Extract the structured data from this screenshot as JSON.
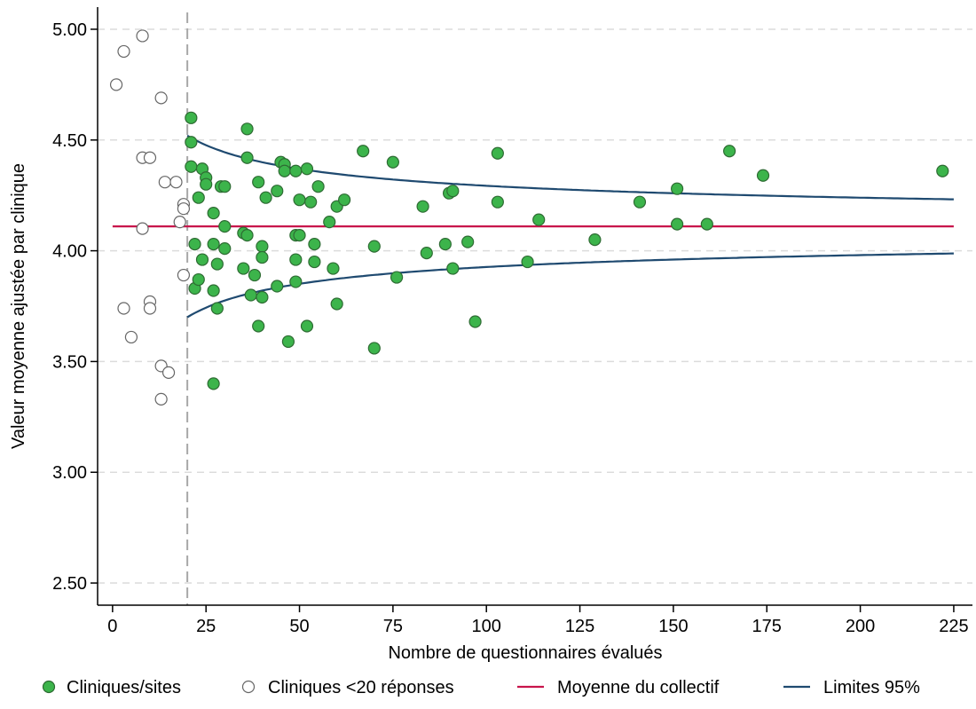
{
  "chart_data": {
    "type": "scatter",
    "xlabel": "Nombre de questionnaires évalués",
    "ylabel": "Valeur moyenne ajustée par clinique",
    "xlim": [
      -4,
      230
    ],
    "ylim": [
      2.4,
      5.1
    ],
    "x_ticks": [
      0,
      25,
      50,
      75,
      100,
      125,
      150,
      175,
      200,
      225
    ],
    "y_ticks": [
      2.5,
      3.0,
      3.5,
      4.0,
      4.5,
      5.0
    ],
    "y_tick_labels": [
      "2.50",
      "3.00",
      "3.50",
      "4.00",
      "4.50",
      "5.00"
    ],
    "grid": "horizontal dashed",
    "threshold_line_x": 20,
    "mean": 4.11,
    "legend": {
      "position": "bottom",
      "entries": [
        {
          "label": "Cliniques/sites",
          "marker": "filled-circle",
          "color": "#3cb44b"
        },
        {
          "label": "Cliniques <20 réponses",
          "marker": "open-circle",
          "color": "#666666"
        },
        {
          "label": "Moyenne du collectif",
          "marker": "line",
          "color": "#c8154b"
        },
        {
          "label": "Limites 95%",
          "marker": "line",
          "color": "#1f4a70"
        }
      ]
    },
    "series": [
      {
        "name": "Cliniques/sites",
        "color": "#3cb44b",
        "points": [
          [
            21,
            4.6
          ],
          [
            21,
            4.49
          ],
          [
            21,
            4.38
          ],
          [
            22,
            4.03
          ],
          [
            22,
            3.83
          ],
          [
            23,
            4.24
          ],
          [
            23,
            3.87
          ],
          [
            24,
            4.37
          ],
          [
            24,
            3.96
          ],
          [
            25,
            4.33
          ],
          [
            25,
            4.3
          ],
          [
            27,
            4.17
          ],
          [
            27,
            4.03
          ],
          [
            27,
            3.82
          ],
          [
            27,
            3.4
          ],
          [
            28,
            3.94
          ],
          [
            28,
            3.74
          ],
          [
            29,
            4.29
          ],
          [
            30,
            4.29
          ],
          [
            30,
            4.11
          ],
          [
            30,
            4.01
          ],
          [
            35,
            4.08
          ],
          [
            35,
            3.92
          ],
          [
            36,
            4.55
          ],
          [
            36,
            4.42
          ],
          [
            36,
            4.07
          ],
          [
            37,
            3.8
          ],
          [
            38,
            3.89
          ],
          [
            39,
            4.31
          ],
          [
            39,
            3.66
          ],
          [
            40,
            4.02
          ],
          [
            40,
            3.97
          ],
          [
            40,
            3.79
          ],
          [
            41,
            4.24
          ],
          [
            44,
            4.27
          ],
          [
            44,
            3.84
          ],
          [
            45,
            4.4
          ],
          [
            46,
            4.39
          ],
          [
            46,
            4.36
          ],
          [
            47,
            3.59
          ],
          [
            49,
            4.36
          ],
          [
            49,
            4.07
          ],
          [
            49,
            3.96
          ],
          [
            49,
            3.86
          ],
          [
            50,
            4.23
          ],
          [
            50,
            4.07
          ],
          [
            52,
            4.37
          ],
          [
            52,
            3.66
          ],
          [
            53,
            4.22
          ],
          [
            54,
            4.03
          ],
          [
            54,
            3.95
          ],
          [
            55,
            4.29
          ],
          [
            58,
            4.13
          ],
          [
            59,
            3.92
          ],
          [
            60,
            4.2
          ],
          [
            60,
            3.76
          ],
          [
            62,
            4.23
          ],
          [
            67,
            4.45
          ],
          [
            70,
            4.02
          ],
          [
            70,
            3.56
          ],
          [
            75,
            4.4
          ],
          [
            76,
            3.88
          ],
          [
            83,
            4.2
          ],
          [
            84,
            3.99
          ],
          [
            89,
            4.03
          ],
          [
            90,
            4.26
          ],
          [
            91,
            4.27
          ],
          [
            91,
            3.92
          ],
          [
            95,
            4.04
          ],
          [
            97,
            3.68
          ],
          [
            103,
            4.44
          ],
          [
            103,
            4.22
          ],
          [
            111,
            3.95
          ],
          [
            114,
            4.14
          ],
          [
            129,
            4.05
          ],
          [
            141,
            4.22
          ],
          [
            151,
            4.28
          ],
          [
            151,
            4.12
          ],
          [
            159,
            4.12
          ],
          [
            165,
            4.45
          ],
          [
            174,
            4.34
          ],
          [
            222,
            4.36
          ]
        ]
      },
      {
        "name": "Cliniques <20 réponses",
        "color": "#666666",
        "points": [
          [
            1,
            4.75
          ],
          [
            3,
            4.9
          ],
          [
            3,
            3.74
          ],
          [
            5,
            3.61
          ],
          [
            8,
            4.97
          ],
          [
            8,
            4.42
          ],
          [
            8,
            4.1
          ],
          [
            10,
            4.42
          ],
          [
            10,
            3.77
          ],
          [
            10,
            3.74
          ],
          [
            13,
            4.69
          ],
          [
            13,
            3.48
          ],
          [
            13,
            3.33
          ],
          [
            14,
            4.31
          ],
          [
            15,
            3.45
          ],
          [
            17,
            4.31
          ],
          [
            18,
            4.13
          ],
          [
            19,
            4.21
          ],
          [
            19,
            4.19
          ],
          [
            19,
            3.89
          ]
        ]
      },
      {
        "name": "Moyenne du collectif",
        "color": "#c8154b",
        "x": [
          0,
          225
        ],
        "values": [
          4.11,
          4.11
        ]
      },
      {
        "name": "Limites 95% (supérieure)",
        "color": "#1f4a70",
        "x": [
          20,
          25,
          30,
          35,
          40,
          50,
          60,
          75,
          100,
          125,
          150,
          175,
          200,
          225
        ],
        "values": [
          4.52,
          4.478,
          4.446,
          4.423,
          4.405,
          4.379,
          4.361,
          4.342,
          4.32,
          4.306,
          4.296,
          4.289,
          4.283,
          4.278
        ]
      },
      {
        "name": "Limites 95% (inférieure)",
        "color": "#1f4a70",
        "x": [
          20,
          25,
          30,
          35,
          40,
          50,
          60,
          75,
          100,
          125,
          150,
          175,
          200,
          225
        ],
        "values": [
          3.7,
          3.742,
          3.774,
          3.797,
          3.815,
          3.841,
          3.859,
          3.878,
          3.9,
          3.914,
          3.924,
          3.931,
          3.937,
          3.942
        ]
      }
    ]
  }
}
